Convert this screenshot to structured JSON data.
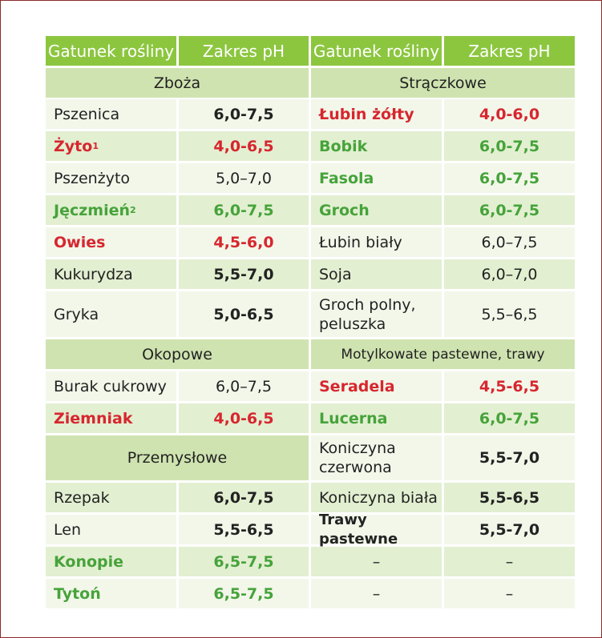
{
  "colors": {
    "header_bg": "#8cc63f",
    "section_bg": "#cfe3b0",
    "row_light": "#f2f7ea",
    "row_dark": "#e2efd1",
    "red": "#d7262e",
    "green": "#46a33a",
    "frame": "#8b2a2a"
  },
  "header": {
    "col1": "Gatunek rośliny",
    "col2": "Zakres pH",
    "col3": "Gatunek rośliny",
    "col4": "Zakres pH"
  },
  "left": {
    "zboza": {
      "title": "Zboża",
      "rows": [
        {
          "name": "Pszenica",
          "ph": "6,0-7,5"
        },
        {
          "name": "Żyto",
          "sup": "1",
          "ph": "4,0-6,5"
        },
        {
          "name": "Pszenżyto",
          "ph": "5,0–7,0"
        },
        {
          "name": "Jęczmień",
          "sup": "2",
          "ph": "6,0-7,5"
        },
        {
          "name": "Owies",
          "ph": "4,5-6,0"
        },
        {
          "name": "Kukurydza",
          "ph": "5,5-7,0"
        },
        {
          "name": "Gryka",
          "ph": "5,0-6,5"
        }
      ]
    },
    "okopowe": {
      "title": "Okopowe",
      "rows": [
        {
          "name": "Burak cukrowy",
          "ph": "6,0–7,5"
        },
        {
          "name": "Ziemniak",
          "ph": "4,0-6,5"
        }
      ]
    },
    "przemyslowe": {
      "title": "Przemysłowe",
      "rows": [
        {
          "name": "Rzepak",
          "ph": "6,0-7,5"
        },
        {
          "name": "Len",
          "ph": "5,5-6,5"
        },
        {
          "name": "Konopie",
          "ph": "6,5-7,5"
        },
        {
          "name": "Tytoń",
          "ph": "6,5-7,5"
        }
      ]
    }
  },
  "right": {
    "straczkowe": {
      "title": "Strączkowe",
      "rows": [
        {
          "name": "Łubin żółty",
          "ph": "4,0-6,0"
        },
        {
          "name": "Bobik",
          "ph": "6,0-7,5"
        },
        {
          "name": "Fasola",
          "ph": "6,0-7,5"
        },
        {
          "name": "Groch",
          "ph": "6,0-7,5"
        },
        {
          "name": "Łubin biały",
          "ph": "6,0–7,5"
        },
        {
          "name": "Soja",
          "ph": "6,0–7,0"
        },
        {
          "name": "Groch polny, peluszka",
          "ph": "5,5–6,5"
        }
      ]
    },
    "motylkowate": {
      "title": "Motylkowate pastewne, trawy",
      "rows": [
        {
          "name": "Seradela",
          "ph": "4,5-6,5"
        },
        {
          "name": "Lucerna",
          "ph": "6,0-7,5"
        },
        {
          "name": "Koniczyna czerwona",
          "ph": "5,5-7,0"
        },
        {
          "name": "Koniczyna biała",
          "ph": "5,5-6,5"
        },
        {
          "name": "Trawy pastewne",
          "ph": "5,5-7,0"
        },
        {
          "name": "–",
          "ph": "–"
        },
        {
          "name": "–",
          "ph": "–"
        }
      ]
    }
  }
}
